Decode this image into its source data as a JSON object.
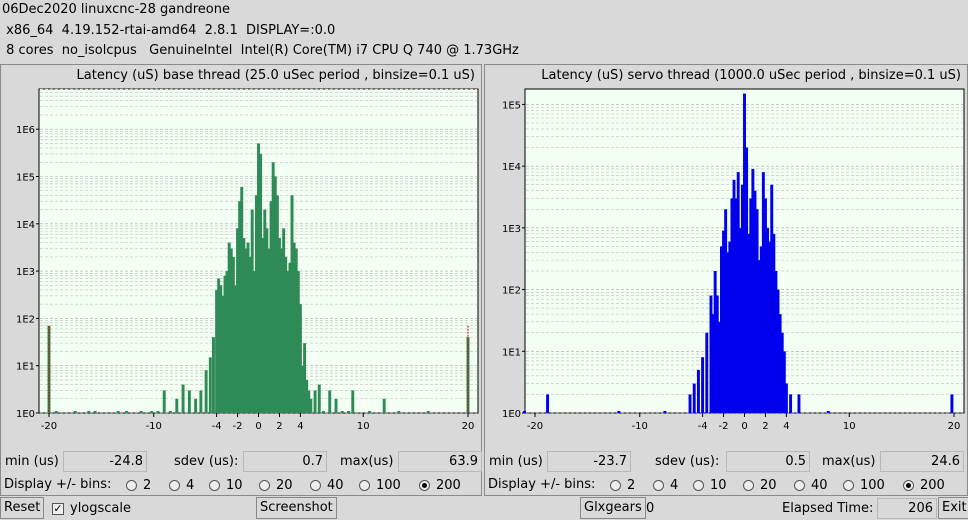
{
  "header": {
    "line1": "06Dec2020 linuxcnc-28 gandreone",
    "line2": " x86_64  4.19.152-rtai-amd64  2.8.1  DISPLAY=:0.0",
    "line3": " 8 cores  no_isolcpus   GenuineIntel  Intel(R) Core(TM) i7 CPU Q 740 @ 1.73GHz"
  },
  "colors": {
    "plot_bg": "#f2fff2",
    "base_bar": "#2e8b57",
    "servo_bar": "#0000ee",
    "grid": "#bdbdbd",
    "limit_line": "#cc0000"
  },
  "base_panel": {
    "title": "Latency (uS) base thread (25.0 uSec period , binsize=0.1 uS)",
    "stats": {
      "min_label": "min (us)",
      "min_value": "-24.8",
      "sdev_label": "sdev (us):",
      "sdev_value": "0.7",
      "max_label": "max(us)",
      "max_value": "63.9"
    },
    "bins_label": "Display +/- bins:",
    "bins_options": [
      "2",
      "4",
      "10",
      "20",
      "40",
      "100",
      "200"
    ],
    "bins_selected": "200"
  },
  "servo_panel": {
    "title": "Latency (uS) servo thread (1000.0 uSec period , binsize=0.1 uS)",
    "stats": {
      "min_label": "min (us)",
      "min_value": "-23.7",
      "sdev_label": "sdev (us):",
      "sdev_value": "0.5",
      "max_label": "max(us)",
      "max_value": "24.6"
    },
    "bins_label": "Display +/- bins:",
    "bins_options": [
      "2",
      "4",
      "10",
      "20",
      "40",
      "100",
      "200"
    ],
    "bins_selected": "200"
  },
  "bottom": {
    "reset_label": "Reset",
    "ylogscale_label": "ylogscale",
    "ylogscale_checked": true,
    "screenshot_label": "Screenshot",
    "glxgears_label": "Glxgears",
    "glxgears_value": "0",
    "elapsed_label": "Elapsed Time:",
    "elapsed_value": "206",
    "exit_label": "Exit"
  },
  "chart_data": [
    {
      "type": "bar",
      "title": "Latency (uS) base thread (25.0 uSec period , binsize=0.1 uS)",
      "yscale": "log",
      "xlim": [
        -20,
        20
      ],
      "x_ticks": [
        "-20",
        "-10",
        "-4",
        "-2",
        "0",
        "2",
        "4",
        "10",
        "20"
      ],
      "y_ticks": [
        "1E0",
        "1E1",
        "1E2",
        "1E3",
        "1E4",
        "1E5",
        "1E6"
      ],
      "color": "#2e8b57",
      "series": [
        {
          "x": [
            -20,
            -19.3,
            -17.5,
            -16.2,
            -15.6,
            -13.4,
            -12.6,
            -11.2,
            -10.2,
            -9.6,
            -9.0,
            -8.4,
            -7.8,
            -7.2,
            -6.6,
            -6.0,
            -5.5,
            -5.0,
            -4.6,
            -4.3,
            -4.0,
            -3.8,
            -3.6,
            -3.4,
            -3.2,
            -3.0,
            -2.8,
            -2.6,
            -2.4,
            -2.2,
            -2.0,
            -1.8,
            -1.6,
            -1.4,
            -1.2,
            -1.0,
            -0.8,
            -0.6,
            -0.4,
            -0.2,
            0,
            0.2,
            0.4,
            0.6,
            0.8,
            1.0,
            1.2,
            1.4,
            1.6,
            1.8,
            2.0,
            2.2,
            2.4,
            2.6,
            2.8,
            3.0,
            3.2,
            3.4,
            3.6,
            3.8,
            4.0,
            4.2,
            4.4,
            4.6,
            4.8,
            5.0,
            5.4,
            5.8,
            6.2,
            6.8,
            7.4,
            8.0,
            8.6,
            9.0,
            10.6,
            12.0,
            13.4,
            16.2,
            20
          ],
          "values": [
            70,
            1,
            1,
            1,
            1,
            1,
            1,
            1,
            1,
            1,
            3,
            1,
            2,
            4,
            3,
            2,
            3,
            8,
            15,
            40,
            400,
            700,
            500,
            300,
            800,
            1000,
            4000,
            3000,
            2000,
            500,
            8000,
            30000,
            60000,
            5000,
            3000,
            4000,
            2000,
            20000,
            1000,
            40000,
            500000,
            300000,
            5000,
            20000,
            8000,
            3000,
            30000,
            200000,
            100000,
            40000,
            5000,
            3000,
            8000,
            2000,
            1000,
            1500,
            40000,
            4000,
            3000,
            1000,
            200,
            10,
            30,
            5,
            3,
            2,
            3,
            4,
            1,
            3,
            2,
            1,
            1,
            3,
            1,
            2,
            1,
            1,
            40
          ]
        }
      ]
    },
    {
      "type": "bar",
      "title": "Latency (uS) servo thread (1000.0 uSec period , binsize=0.1 uS)",
      "yscale": "log",
      "xlim": [
        -20,
        20
      ],
      "x_ticks": [
        "-20",
        "-10",
        "-4",
        "-2",
        "0",
        "2",
        "4",
        "10",
        "20"
      ],
      "y_ticks": [
        "1E0",
        "1E1",
        "1E2",
        "1E3",
        "1E4",
        "1E5"
      ],
      "color": "#0000ee",
      "series": [
        {
          "x": [
            -21,
            -18.8,
            -12.0,
            -7.6,
            -5.2,
            -4.8,
            -4.4,
            -4.0,
            -3.6,
            -3.2,
            -3.0,
            -2.8,
            -2.6,
            -2.4,
            -2.2,
            -2.0,
            -1.8,
            -1.6,
            -1.4,
            -1.2,
            -1.0,
            -0.8,
            -0.6,
            -0.4,
            -0.2,
            0,
            0.2,
            0.4,
            0.6,
            0.8,
            1.0,
            1.2,
            1.4,
            1.6,
            1.8,
            2.0,
            2.2,
            2.4,
            2.6,
            2.8,
            3.0,
            3.2,
            3.4,
            3.6,
            3.8,
            4.0,
            4.4,
            5.2,
            8.0,
            19.8
          ],
          "values": [
            1,
            2,
            1,
            1,
            2,
            3,
            5,
            8,
            20,
            80,
            40,
            200,
            80,
            30,
            500,
            900,
            2000,
            400,
            600,
            3000,
            6000,
            3000,
            8000,
            1000,
            5000,
            150000,
            20000,
            800,
            3000,
            9000,
            4000,
            2000,
            300,
            500,
            8000,
            3000,
            1000,
            600,
            5000,
            800,
            200,
            100,
            40,
            20,
            10,
            3,
            2,
            2,
            1,
            2
          ]
        }
      ]
    }
  ]
}
